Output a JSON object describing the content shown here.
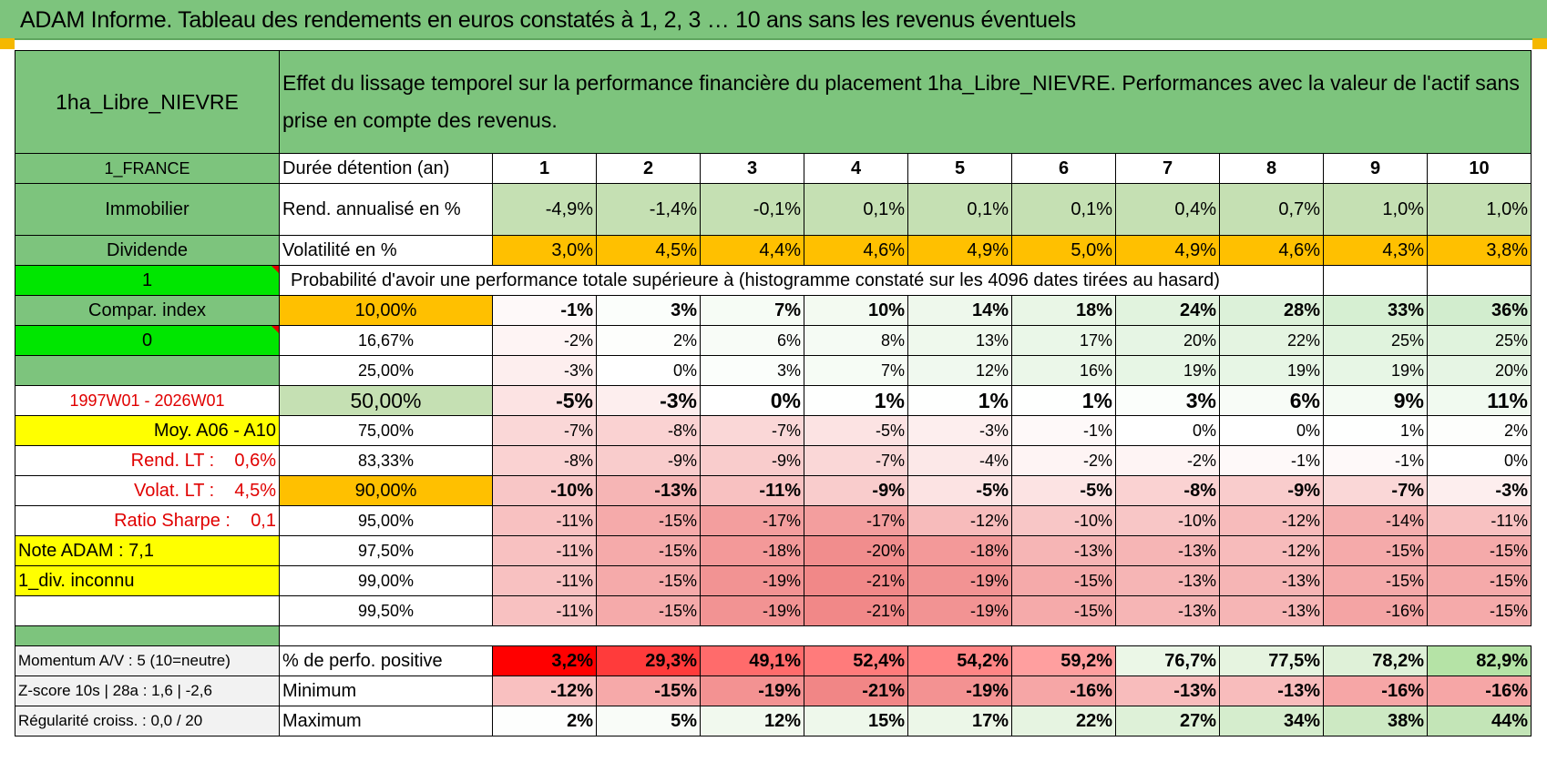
{
  "title": "ADAM Informe. Tableau des rendements en euros constatés à 1, 2, 3 … 10 ans sans les revenus éventuels",
  "header": {
    "asset": "1ha_Libre_NIEVRE",
    "description": "Effet du lissage temporel sur la performance financière du placement 1ha_Libre_NIEVRE. Performances avec la valeur de l'actif sans prise en compte des revenus."
  },
  "left": {
    "country": "1_FRANCE",
    "category": "Immobilier",
    "type": "Dividende",
    "flag1": "1",
    "compar": "Compar. index",
    "flag0": "0",
    "blank": "",
    "period": "1997W01 - 2026W01",
    "moy": "Moy. A06 - A10",
    "rend_lt": "Rend. LT :    0,6%",
    "volat_lt": "Volat. LT :    4,5%",
    "sharpe": "Ratio Sharpe :    0,1",
    "note": "Note ADAM : 7,1",
    "div": "1_div. inconnu",
    "momentum": "Momentum A/V : 5 (10=neutre)",
    "zscore": "Z-score 10s | 28a : 1,6 | -2,6",
    "regularite": "Régularité croiss. : 0,0 / 20"
  },
  "labels": {
    "duration": "Durée détention (an)",
    "rend": "Rend. annualisé en %",
    "volat": "Volatilité en %",
    "proba": "Probabilité d'avoir une performance totale supérieure à (histogramme constaté sur les 4096 dates tirées au hasard)",
    "positive": "% de perfo. positive",
    "minimum": "Minimum",
    "maximum": "Maximum"
  },
  "years": [
    "1",
    "2",
    "3",
    "4",
    "5",
    "6",
    "7",
    "8",
    "9",
    "10"
  ],
  "rend": [
    "-4,9%",
    "-1,4%",
    "-0,1%",
    "0,1%",
    "0,1%",
    "0,1%",
    "0,4%",
    "0,7%",
    "1,0%",
    "1,0%"
  ],
  "volat": [
    "3,0%",
    "4,5%",
    "4,4%",
    "4,6%",
    "4,9%",
    "5,0%",
    "4,9%",
    "4,6%",
    "4,3%",
    "3,8%"
  ],
  "quantiles": [
    {
      "p": "10,00%",
      "vals": [
        "-1%",
        "3%",
        "7%",
        "10%",
        "14%",
        "18%",
        "24%",
        "28%",
        "33%",
        "36%"
      ]
    },
    {
      "p": "16,67%",
      "vals": [
        "-2%",
        "2%",
        "6%",
        "8%",
        "13%",
        "17%",
        "20%",
        "22%",
        "25%",
        "25%"
      ]
    },
    {
      "p": "25,00%",
      "vals": [
        "-3%",
        "0%",
        "3%",
        "7%",
        "12%",
        "16%",
        "19%",
        "19%",
        "19%",
        "20%"
      ]
    },
    {
      "p": "50,00%",
      "vals": [
        "-5%",
        "-3%",
        "0%",
        "1%",
        "1%",
        "1%",
        "3%",
        "6%",
        "9%",
        "11%"
      ]
    },
    {
      "p": "75,00%",
      "vals": [
        "-7%",
        "-8%",
        "-7%",
        "-5%",
        "-3%",
        "-1%",
        "0%",
        "0%",
        "1%",
        "2%"
      ]
    },
    {
      "p": "83,33%",
      "vals": [
        "-8%",
        "-9%",
        "-9%",
        "-7%",
        "-4%",
        "-2%",
        "-2%",
        "-1%",
        "-1%",
        "0%"
      ]
    },
    {
      "p": "90,00%",
      "vals": [
        "-10%",
        "-13%",
        "-11%",
        "-9%",
        "-5%",
        "-5%",
        "-8%",
        "-9%",
        "-7%",
        "-3%"
      ]
    },
    {
      "p": "95,00%",
      "vals": [
        "-11%",
        "-15%",
        "-17%",
        "-17%",
        "-12%",
        "-10%",
        "-10%",
        "-12%",
        "-14%",
        "-11%"
      ]
    },
    {
      "p": "97,50%",
      "vals": [
        "-11%",
        "-15%",
        "-18%",
        "-20%",
        "-18%",
        "-13%",
        "-13%",
        "-12%",
        "-15%",
        "-15%"
      ]
    },
    {
      "p": "99,00%",
      "vals": [
        "-11%",
        "-15%",
        "-19%",
        "-21%",
        "-19%",
        "-15%",
        "-13%",
        "-13%",
        "-15%",
        "-15%"
      ]
    },
    {
      "p": "99,50%",
      "vals": [
        "-11%",
        "-15%",
        "-19%",
        "-21%",
        "-19%",
        "-15%",
        "-13%",
        "-13%",
        "-16%",
        "-15%"
      ]
    }
  ],
  "positive": [
    "3,2%",
    "29,3%",
    "49,1%",
    "52,4%",
    "54,2%",
    "59,2%",
    "76,7%",
    "77,5%",
    "78,2%",
    "82,9%"
  ],
  "minimum": [
    "-12%",
    "-15%",
    "-19%",
    "-21%",
    "-19%",
    "-16%",
    "-13%",
    "-13%",
    "-16%",
    "-16%"
  ],
  "maximum": [
    "2%",
    "5%",
    "12%",
    "15%",
    "17%",
    "22%",
    "27%",
    "34%",
    "38%",
    "44%"
  ],
  "colors": {
    "positive": [
      "#ff0000",
      "#ff3b3b",
      "#ff6b6b",
      "#ff7b7b",
      "#ff8585",
      "#ff9f9f",
      "#ebf7e7",
      "#e6f4e0",
      "#dff1d8",
      "#b5e3a6"
    ],
    "minimum": [
      "#f9c0c0",
      "#f6a9a9",
      "#f39292",
      "#f18686",
      "#f39292",
      "#f6a6a6",
      "#f8bcbc",
      "#f8bcbc",
      "#f6a6a6",
      "#f6a6a6"
    ],
    "maximum": [
      "#fdfefd",
      "#f9fcf8",
      "#f1f9ee",
      "#eef8eb",
      "#ecf7e8",
      "#e6f4e1",
      "#def1d8",
      "#d5edcd",
      "#cde9c3",
      "#c3e5b7"
    ]
  }
}
